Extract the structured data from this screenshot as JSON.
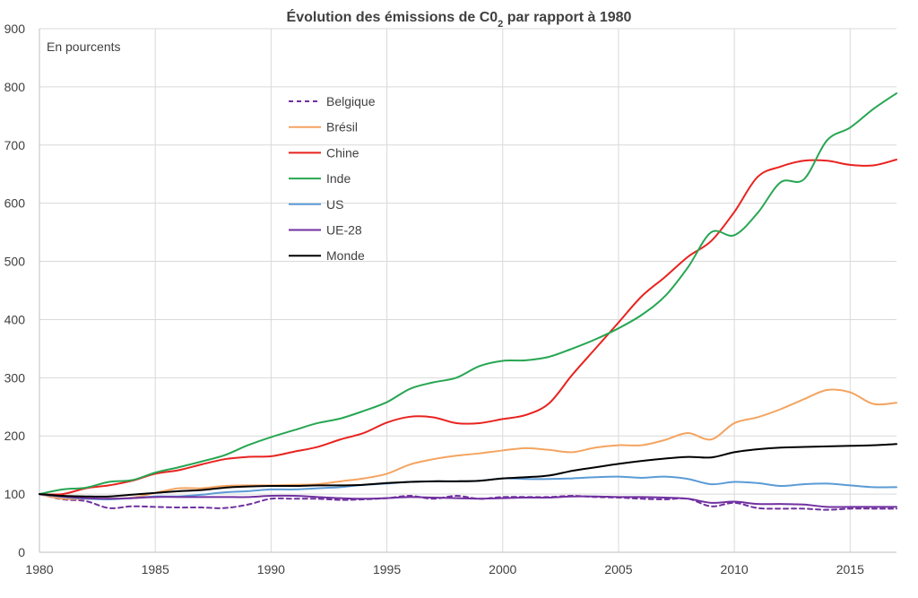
{
  "chart_data": {
    "type": "line",
    "title_main": "Évolution des émissions de C0",
    "title_sub": "2",
    "title_rest": " par rapport à 1980",
    "annotation": "En pourcents",
    "xlim": [
      1980,
      2017
    ],
    "ylim": [
      0,
      900
    ],
    "xticks": [
      1980,
      1985,
      1990,
      1995,
      2000,
      2005,
      2010,
      2015
    ],
    "yticks": [
      0,
      100,
      200,
      300,
      400,
      500,
      600,
      700,
      800,
      900
    ],
    "grid": true,
    "legend_position": "upper-center",
    "x": [
      1980,
      1981,
      1982,
      1983,
      1984,
      1985,
      1986,
      1987,
      1988,
      1989,
      1990,
      1991,
      1992,
      1993,
      1994,
      1995,
      1996,
      1997,
      1998,
      1999,
      2000,
      2001,
      2002,
      2003,
      2004,
      2005,
      2006,
      2007,
      2008,
      2009,
      2010,
      2011,
      2012,
      2013,
      2014,
      2015,
      2016,
      2017
    ],
    "series": [
      {
        "name": "Belgique",
        "color": "#7030a0",
        "dashed": true,
        "values": [
          100,
          91,
          88,
          76,
          79,
          78,
          77,
          77,
          76,
          82,
          92,
          92,
          92,
          90,
          91,
          93,
          97,
          92,
          97,
          92,
          95,
          95,
          95,
          97,
          95,
          94,
          92,
          91,
          92,
          79,
          85,
          76,
          75,
          75,
          73,
          75,
          75,
          75
        ]
      },
      {
        "name": "Brésil",
        "color": "#f4a460",
        "dashed": false,
        "values": [
          100,
          92,
          92,
          92,
          94,
          102,
          110,
          110,
          114,
          115,
          115,
          116,
          117,
          122,
          127,
          135,
          151,
          160,
          166,
          170,
          175,
          179,
          176,
          172,
          180,
          184,
          184,
          193,
          205,
          194,
          222,
          232,
          246,
          263,
          279,
          275,
          255,
          257
        ]
      },
      {
        "name": "Chine",
        "color": "#e8231f",
        "dashed": false,
        "values": [
          100,
          100,
          110,
          115,
          123,
          135,
          141,
          151,
          160,
          164,
          165,
          173,
          181,
          194,
          205,
          223,
          233,
          232,
          222,
          222,
          229,
          236,
          256,
          305,
          350,
          395,
          440,
          473,
          508,
          535,
          585,
          645,
          663,
          673,
          673,
          666,
          665,
          675
        ]
      },
      {
        "name": "Inde",
        "color": "#27a652",
        "dashed": false,
        "values": [
          100,
          108,
          111,
          121,
          124,
          137,
          146,
          156,
          167,
          184,
          198,
          210,
          222,
          230,
          243,
          258,
          281,
          292,
          300,
          320,
          329,
          330,
          336,
          350,
          366,
          385,
          408,
          440,
          490,
          550,
          545,
          583,
          636,
          641,
          708,
          730,
          762,
          789
        ]
      },
      {
        "name": "US",
        "color": "#5b9bd5",
        "dashed": false,
        "values": [
          100,
          95,
          92,
          91,
          93,
          96,
          96,
          99,
          103,
          105,
          108,
          108,
          110,
          112,
          116,
          118,
          121,
          122,
          122,
          123,
          127,
          126,
          126,
          127,
          129,
          130,
          128,
          130,
          126,
          117,
          121,
          119,
          114,
          117,
          118,
          115,
          112,
          112
        ]
      },
      {
        "name": "UE-28",
        "color": "#7030a0",
        "dashed": false,
        "values": [
          100,
          96,
          93,
          92,
          93,
          95,
          95,
          95,
          95,
          95,
          97,
          97,
          95,
          93,
          92,
          93,
          95,
          94,
          93,
          92,
          93,
          94,
          94,
          96,
          96,
          95,
          95,
          94,
          92,
          85,
          87,
          83,
          83,
          82,
          78,
          78,
          78,
          78
        ]
      },
      {
        "name": "Monde",
        "color": "#000000",
        "dashed": false,
        "values": [
          100,
          97,
          96,
          96,
          99,
          102,
          105,
          107,
          111,
          113,
          114,
          114,
          115,
          115,
          116,
          119,
          121,
          122,
          122,
          123,
          127,
          129,
          132,
          140,
          146,
          152,
          157,
          161,
          164,
          163,
          172,
          177,
          180,
          181,
          182,
          183,
          184,
          186
        ]
      }
    ]
  }
}
